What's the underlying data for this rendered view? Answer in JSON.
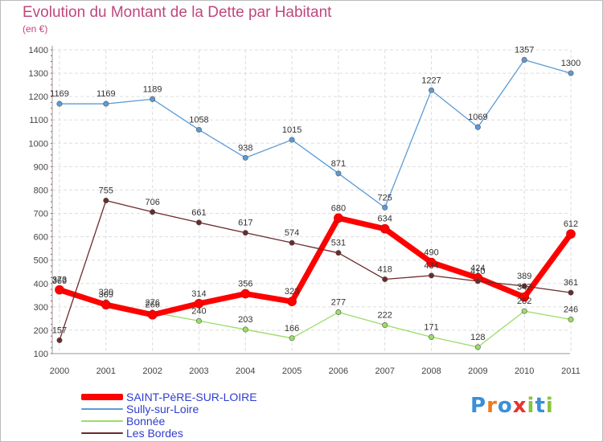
{
  "chart_data": {
    "type": "line",
    "title": "Evolution du Montant de la Dette par Habitant",
    "subtitle": "(en €)",
    "x": [
      "2000",
      "2001",
      "2002",
      "2003",
      "2004",
      "2005",
      "2006",
      "2007",
      "2008",
      "2009",
      "2010",
      "2011"
    ],
    "ylim": [
      100,
      1400
    ],
    "yticks": [
      100,
      200,
      300,
      400,
      500,
      600,
      700,
      800,
      900,
      1000,
      1100,
      1200,
      1300,
      1400
    ],
    "grid": true,
    "legend_position": "bottom-left",
    "series": [
      {
        "name": "SAINT-PèRE-SUR-LOIRE",
        "color": "#ff0000",
        "values": [
          373,
          309,
          266,
          314,
          356,
          323,
          680,
          634,
          490,
          424,
          342,
          612
        ]
      },
      {
        "name": "Sully-sur-Loire",
        "color": "#5b9bd5",
        "values": [
          1169,
          1169,
          1189,
          1058,
          938,
          1015,
          871,
          725,
          1227,
          1069,
          1357,
          1300
        ]
      },
      {
        "name": "Bonnée",
        "color": "#99dd66",
        "values": [
          369,
          320,
          276,
          240,
          203,
          166,
          277,
          222,
          171,
          128,
          282,
          246
        ]
      },
      {
        "name": "Les Bordes",
        "color": "#6b2a2a",
        "values": [
          157,
          755,
          706,
          661,
          617,
          574,
          531,
          418,
          434,
          410,
          389,
          361
        ]
      }
    ]
  },
  "brand": {
    "text": "Proxiti",
    "colors": [
      "#3a8fd8",
      "#f07a1c",
      "#3a8fd8",
      "#e8332b",
      "#8ac43f",
      "#3a8fd8",
      "#8ac43f"
    ]
  }
}
